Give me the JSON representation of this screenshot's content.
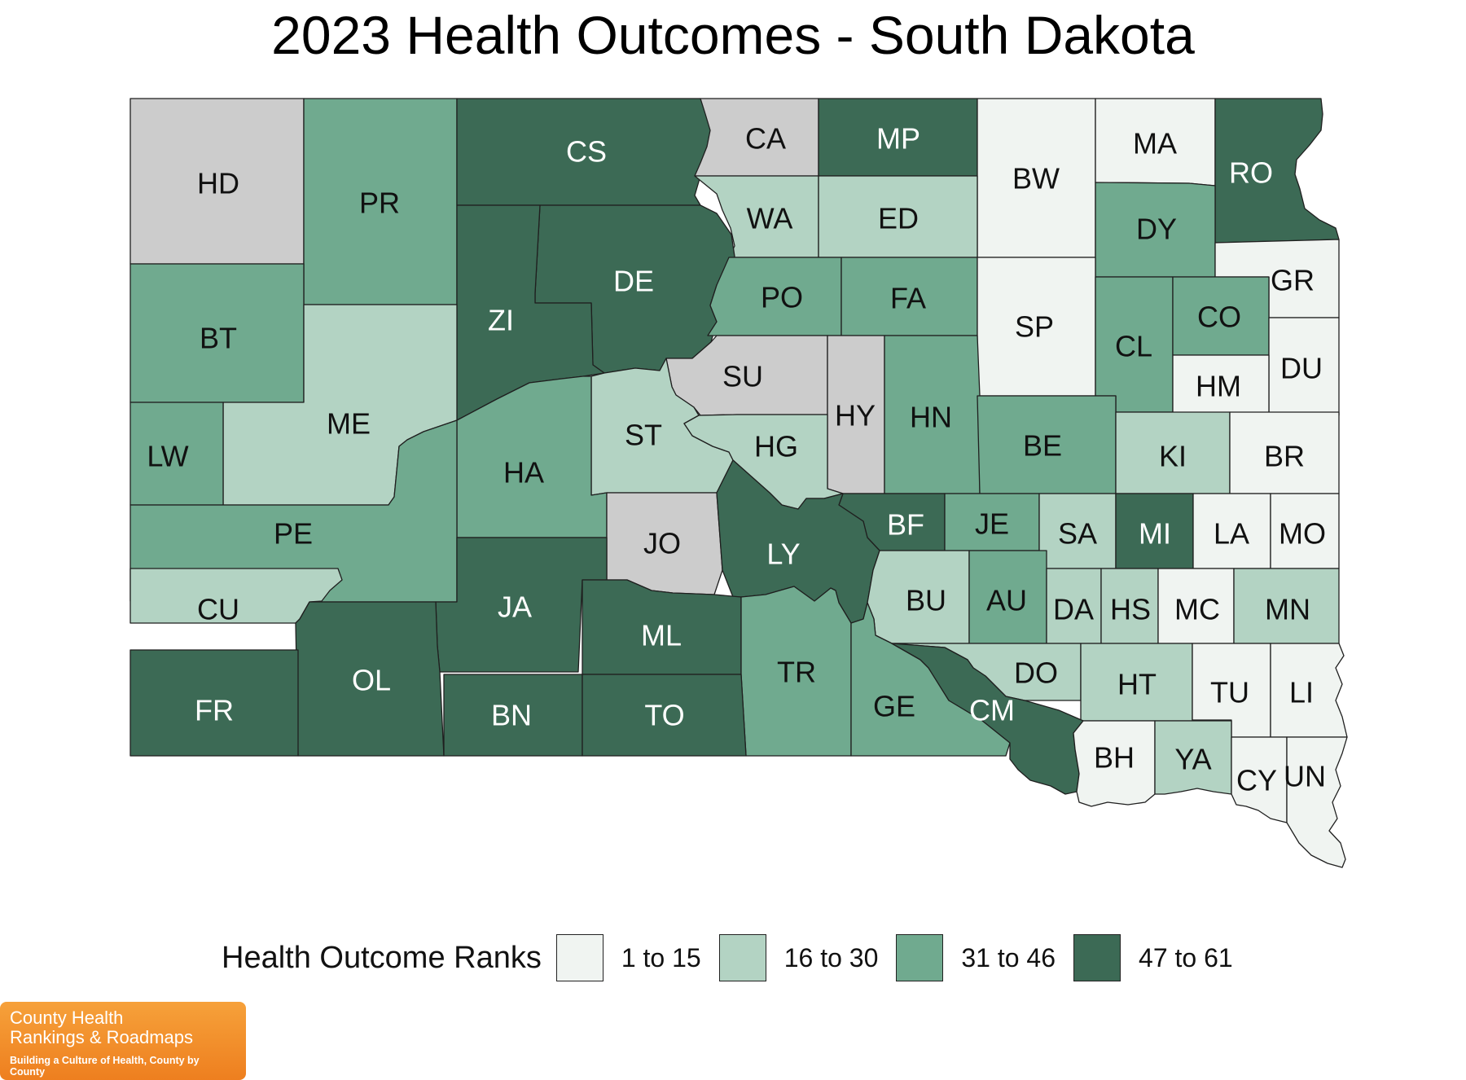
{
  "title": "2023 Health Outcomes - South Dakota",
  "legend": {
    "title": "Health Outcome Ranks",
    "items": [
      {
        "label": "1 to 15",
        "color": "#f0f4f1"
      },
      {
        "label": "16 to 30",
        "color": "#b3d3c3"
      },
      {
        "label": "31 to 46",
        "color": "#70aa8f"
      },
      {
        "label": "47 to 61",
        "color": "#3c6a55"
      }
    ],
    "no_data_color": "#cccccc"
  },
  "counties": [
    {
      "code": "HD",
      "bin": "none"
    },
    {
      "code": "PR",
      "bin": "31 to 46"
    },
    {
      "code": "CS",
      "bin": "47 to 61"
    },
    {
      "code": "CA",
      "bin": "none"
    },
    {
      "code": "MP",
      "bin": "47 to 61"
    },
    {
      "code": "BW",
      "bin": "1 to 15"
    },
    {
      "code": "MA",
      "bin": "1 to 15"
    },
    {
      "code": "RO",
      "bin": "47 to 61"
    },
    {
      "code": "WA",
      "bin": "16 to 30"
    },
    {
      "code": "ED",
      "bin": "16 to 30"
    },
    {
      "code": "DY",
      "bin": "31 to 46"
    },
    {
      "code": "GR",
      "bin": "1 to 15"
    },
    {
      "code": "BT",
      "bin": "31 to 46"
    },
    {
      "code": "DE",
      "bin": "47 to 61"
    },
    {
      "code": "ZI",
      "bin": "47 to 61"
    },
    {
      "code": "PO",
      "bin": "31 to 46"
    },
    {
      "code": "FA",
      "bin": "31 to 46"
    },
    {
      "code": "SP",
      "bin": "1 to 15"
    },
    {
      "code": "CL",
      "bin": "31 to 46"
    },
    {
      "code": "CO",
      "bin": "31 to 46"
    },
    {
      "code": "DU",
      "bin": "1 to 15"
    },
    {
      "code": "HM",
      "bin": "1 to 15"
    },
    {
      "code": "ME",
      "bin": "16 to 30"
    },
    {
      "code": "SU",
      "bin": "none"
    },
    {
      "code": "HY",
      "bin": "none"
    },
    {
      "code": "HN",
      "bin": "31 to 46"
    },
    {
      "code": "LW",
      "bin": "31 to 46"
    },
    {
      "code": "ST",
      "bin": "16 to 30"
    },
    {
      "code": "HG",
      "bin": "16 to 30"
    },
    {
      "code": "BE",
      "bin": "31 to 46"
    },
    {
      "code": "KI",
      "bin": "16 to 30"
    },
    {
      "code": "BR",
      "bin": "1 to 15"
    },
    {
      "code": "HA",
      "bin": "31 to 46"
    },
    {
      "code": "PE",
      "bin": "31 to 46"
    },
    {
      "code": "BF",
      "bin": "47 to 61"
    },
    {
      "code": "JE",
      "bin": "31 to 46"
    },
    {
      "code": "SA",
      "bin": "16 to 30"
    },
    {
      "code": "MI",
      "bin": "47 to 61"
    },
    {
      "code": "LA",
      "bin": "1 to 15"
    },
    {
      "code": "MO",
      "bin": "1 to 15"
    },
    {
      "code": "JO",
      "bin": "none"
    },
    {
      "code": "LY",
      "bin": "47 to 61"
    },
    {
      "code": "CU",
      "bin": "16 to 30"
    },
    {
      "code": "JA",
      "bin": "47 to 61"
    },
    {
      "code": "BU",
      "bin": "16 to 30"
    },
    {
      "code": "AU",
      "bin": "31 to 46"
    },
    {
      "code": "DA",
      "bin": "16 to 30"
    },
    {
      "code": "HS",
      "bin": "16 to 30"
    },
    {
      "code": "MC",
      "bin": "1 to 15"
    },
    {
      "code": "MN",
      "bin": "16 to 30"
    },
    {
      "code": "ML",
      "bin": "47 to 61"
    },
    {
      "code": "OL",
      "bin": "47 to 61"
    },
    {
      "code": "TR",
      "bin": "31 to 46"
    },
    {
      "code": "DO",
      "bin": "16 to 30"
    },
    {
      "code": "HT",
      "bin": "16 to 30"
    },
    {
      "code": "TU",
      "bin": "1 to 15"
    },
    {
      "code": "LI",
      "bin": "1 to 15"
    },
    {
      "code": "FR",
      "bin": "47 to 61"
    },
    {
      "code": "BN",
      "bin": "47 to 61"
    },
    {
      "code": "TO",
      "bin": "47 to 61"
    },
    {
      "code": "GE",
      "bin": "31 to 46"
    },
    {
      "code": "CM",
      "bin": "47 to 61"
    },
    {
      "code": "BH",
      "bin": "1 to 15"
    },
    {
      "code": "YA",
      "bin": "16 to 30"
    },
    {
      "code": "CY",
      "bin": "1 to 15"
    },
    {
      "code": "UN",
      "bin": "1 to 15"
    }
  ],
  "logo": {
    "line1": "County Health",
    "line2": "Rankings & Roadmaps",
    "tagline": "Building a Culture of Health, County by County"
  }
}
